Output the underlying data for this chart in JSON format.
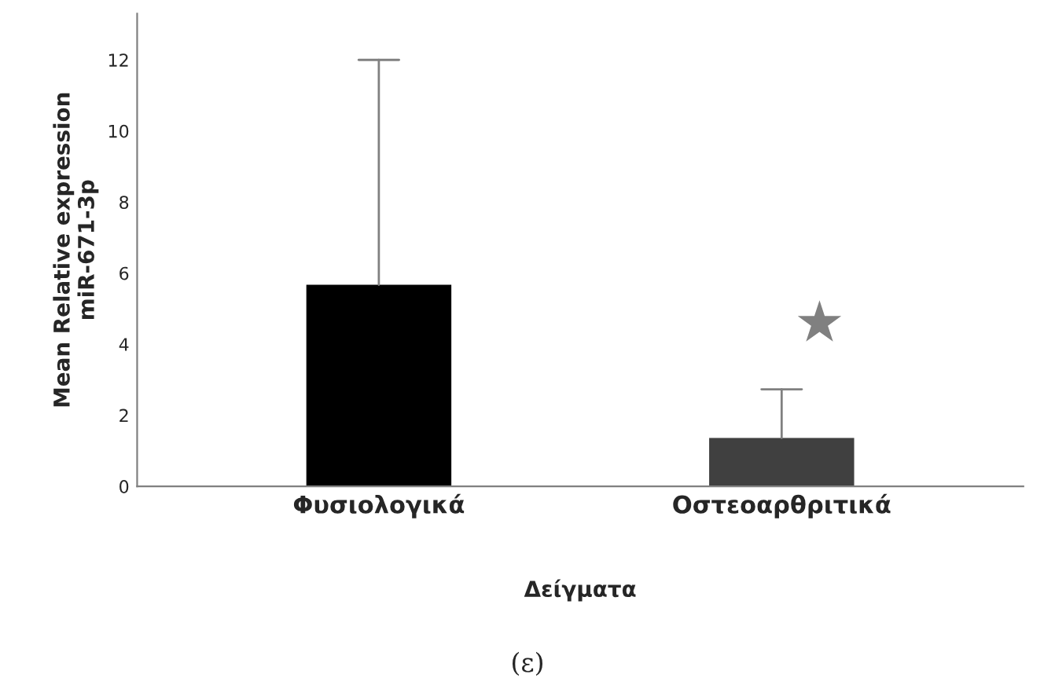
{
  "chart_data": {
    "type": "bar",
    "xlabel": "Δείγματα",
    "ylabel": "Mean Relative expression\nmiR-671-3p",
    "categories": [
      "Φυσιολογικά",
      "Οστεοαρθριτικά"
    ],
    "values": [
      5.67,
      1.36
    ],
    "colors": [
      "#000000",
      "#404040"
    ],
    "errors": [
      [
        5.67,
        12
      ],
      [
        1.36,
        2.73
      ]
    ],
    "ylim": [
      0,
      13.3
    ],
    "yticks": [
      0,
      2,
      4,
      6,
      8,
      10,
      12
    ],
    "grid": false,
    "annotations": [
      "★",
      "(ε)"
    ]
  }
}
